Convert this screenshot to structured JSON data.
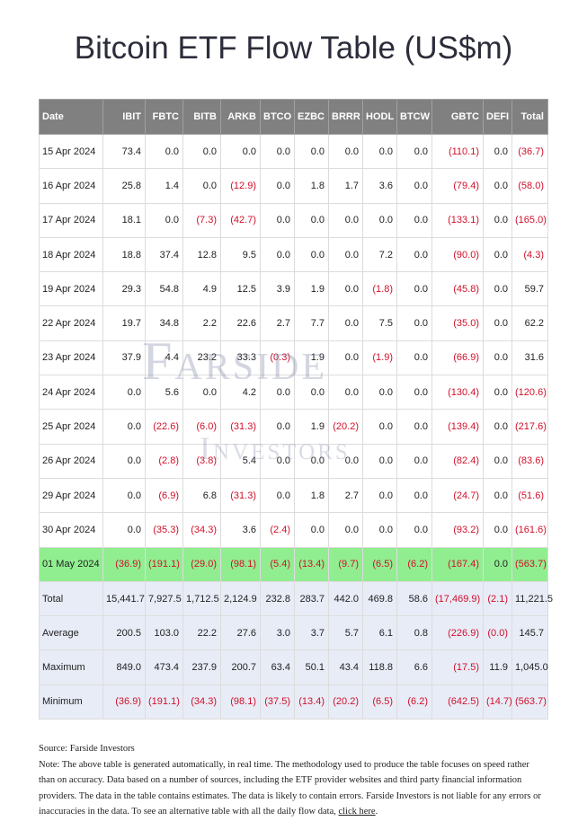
{
  "title": "Bitcoin ETF Flow Table (US$m)",
  "columns": [
    "Date",
    "IBIT",
    "FBTC",
    "BITB",
    "ARKB",
    "BTCO",
    "EZBC",
    "BRRR",
    "HODL",
    "BTCW",
    "GBTC",
    "DEFI",
    "Total"
  ],
  "rows": [
    [
      "15 Apr 2024",
      "73.4",
      "0.0",
      "0.0",
      "0.0",
      "0.0",
      "0.0",
      "0.0",
      "0.0",
      "0.0",
      "(110.1)",
      "0.0",
      "(36.7)"
    ],
    [
      "16 Apr 2024",
      "25.8",
      "1.4",
      "0.0",
      "(12.9)",
      "0.0",
      "1.8",
      "1.7",
      "3.6",
      "0.0",
      "(79.4)",
      "0.0",
      "(58.0)"
    ],
    [
      "17 Apr 2024",
      "18.1",
      "0.0",
      "(7.3)",
      "(42.7)",
      "0.0",
      "0.0",
      "0.0",
      "0.0",
      "0.0",
      "(133.1)",
      "0.0",
      "(165.0)"
    ],
    [
      "18 Apr 2024",
      "18.8",
      "37.4",
      "12.8",
      "9.5",
      "0.0",
      "0.0",
      "0.0",
      "7.2",
      "0.0",
      "(90.0)",
      "0.0",
      "(4.3)"
    ],
    [
      "19 Apr 2024",
      "29.3",
      "54.8",
      "4.9",
      "12.5",
      "3.9",
      "1.9",
      "0.0",
      "(1.8)",
      "0.0",
      "(45.8)",
      "0.0",
      "59.7"
    ],
    [
      "22 Apr 2024",
      "19.7",
      "34.8",
      "2.2",
      "22.6",
      "2.7",
      "7.7",
      "0.0",
      "7.5",
      "0.0",
      "(35.0)",
      "0.0",
      "62.2"
    ],
    [
      "23 Apr 2024",
      "37.9",
      "4.4",
      "23.2",
      "33.3",
      "(0.3)",
      "1.9",
      "0.0",
      "(1.9)",
      "0.0",
      "(66.9)",
      "0.0",
      "31.6"
    ],
    [
      "24 Apr 2024",
      "0.0",
      "5.6",
      "0.0",
      "4.2",
      "0.0",
      "0.0",
      "0.0",
      "0.0",
      "0.0",
      "(130.4)",
      "0.0",
      "(120.6)"
    ],
    [
      "25 Apr 2024",
      "0.0",
      "(22.6)",
      "(6.0)",
      "(31.3)",
      "0.0",
      "1.9",
      "(20.2)",
      "0.0",
      "0.0",
      "(139.4)",
      "0.0",
      "(217.6)"
    ],
    [
      "26 Apr 2024",
      "0.0",
      "(2.8)",
      "(3.8)",
      "5.4",
      "0.0",
      "0.0",
      "0.0",
      "0.0",
      "0.0",
      "(82.4)",
      "0.0",
      "(83.6)"
    ],
    [
      "29 Apr 2024",
      "0.0",
      "(6.9)",
      "6.8",
      "(31.3)",
      "0.0",
      "1.8",
      "2.7",
      "0.0",
      "0.0",
      "(24.7)",
      "0.0",
      "(51.6)"
    ],
    [
      "30 Apr 2024",
      "0.0",
      "(35.3)",
      "(34.3)",
      "3.6",
      "(2.4)",
      "0.0",
      "0.0",
      "0.0",
      "0.0",
      "(93.2)",
      "0.0",
      "(161.6)"
    ],
    [
      "01 May 2024",
      "(36.9)",
      "(191.1)",
      "(29.0)",
      "(98.1)",
      "(5.4)",
      "(13.4)",
      "(9.7)",
      "(6.5)",
      "(6.2)",
      "(167.4)",
      "0.0",
      "(563.7)"
    ]
  ],
  "highlight_row_index": 12,
  "summary_rows": [
    [
      "Total",
      "15,441.7",
      "7,927.5",
      "1,712.5",
      "2,124.9",
      "232.8",
      "283.7",
      "442.0",
      "469.8",
      "58.6",
      "(17,469.9)",
      "(2.1)",
      "11,221.5"
    ],
    [
      "Average",
      "200.5",
      "103.0",
      "22.2",
      "27.6",
      "3.0",
      "3.7",
      "5.7",
      "6.1",
      "0.8",
      "(226.9)",
      "(0.0)",
      "145.7"
    ],
    [
      "Maximum",
      "849.0",
      "473.4",
      "237.9",
      "200.7",
      "63.4",
      "50.1",
      "43.4",
      "118.8",
      "6.6",
      "(17.5)",
      "11.9",
      "1,045.0"
    ],
    [
      "Minimum",
      "(36.9)",
      "(191.1)",
      "(34.3)",
      "(98.1)",
      "(37.5)",
      "(13.4)",
      "(20.2)",
      "(6.5)",
      "(6.2)",
      "(642.5)",
      "(14.7)",
      "(563.7)"
    ]
  ],
  "watermark": {
    "line1": "Farside",
    "line2": "Investors"
  },
  "footer": {
    "source": "Source: Farside Investors",
    "note": "Note: The above table is generated automatically, in real time. The methodology used to produce the table focuses on speed rather than on accuracy. Data based on a number of sources, including the ETF provider websites and third party financial information providers. The data in the table contains estimates. The data is likely to contain errors. Farside Investors is not liable for any errors or inaccuracies in the data. To see an alternative table with all the daily flow data, ",
    "link_text": "click here",
    "end": "."
  },
  "colors": {
    "header_bg": "#808080",
    "highlight_bg": "#90ee90",
    "summary_bg": "#e8ecf7",
    "negative": "#d0102a"
  }
}
